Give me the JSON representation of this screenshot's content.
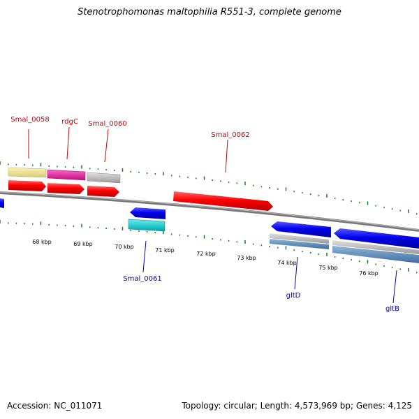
{
  "title": "Stenotrophomonas maltophilia R551-3, complete genome",
  "footer": {
    "accession": "Accession: NC_011071",
    "summary": "Topology: circular; Length: 4,573,969 bp; Genes: 4,125"
  },
  "ruler_labels": [
    "68 kbp",
    "69 kbp",
    "70 kbp",
    "71 kbp",
    "72 kbp",
    "73 kbp",
    "74 kbp",
    "75 kbp",
    "76 kbp"
  ],
  "gene_labels": {
    "smal_0058": "Smal_0058",
    "rdgc": "rdgC",
    "smal_0060": "Smal_0060",
    "smal_0062": "Smal_0062",
    "smal_0061": "Smal_0061",
    "gltd": "gltD",
    "gltb": "gltB"
  },
  "colors": {
    "forward_label": "#cc0000",
    "reverse_label": "#0000aa",
    "tick": "#1a7a1a",
    "backbone": "#888888"
  }
}
